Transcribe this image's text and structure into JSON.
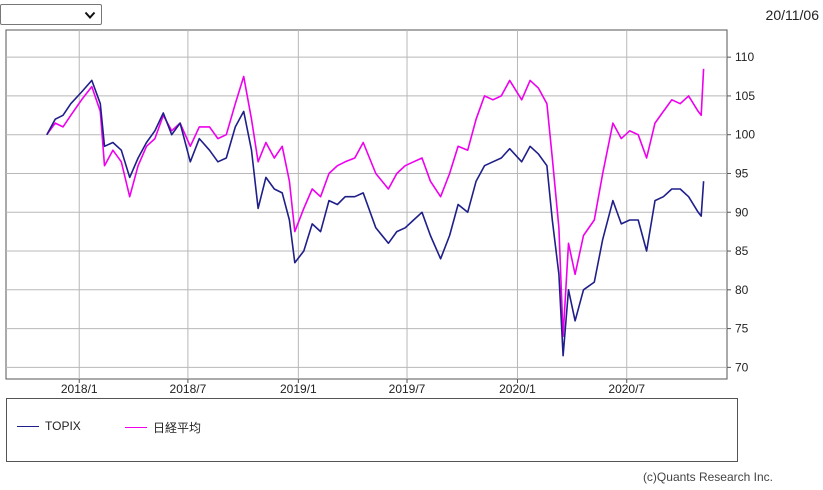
{
  "header": {
    "period_select_value": "",
    "date": "20/11/06"
  },
  "footer": {
    "copyright": "(c)Quants Research Inc."
  },
  "colors": {
    "topix": "#1f1f8a",
    "nikkei": "#ee00ee",
    "grid": "#b8b8b8",
    "frame": "#555555"
  },
  "chart_data": {
    "type": "line",
    "title": "",
    "xlabel": "",
    "ylabel": "",
    "ylim": [
      68.5,
      113.5
    ],
    "xlim": [
      "2017-09-01",
      "2020-12-15"
    ],
    "y_axis_side": "right",
    "y_ticks": [
      110,
      105,
      100,
      95,
      90,
      85,
      80,
      75,
      70
    ],
    "x_ticks": [
      {
        "label": "2018/1",
        "date": "2018-01-01"
      },
      {
        "label": "2018/7",
        "date": "2018-07-01"
      },
      {
        "label": "2019/1",
        "date": "2019-01-01"
      },
      {
        "label": "2019/7",
        "date": "2019-07-01"
      },
      {
        "label": "2020/1",
        "date": "2020-01-01"
      },
      {
        "label": "2020/7",
        "date": "2020-07-01"
      }
    ],
    "grid": true,
    "legend_position": "bottom",
    "series": [
      {
        "name": "TOPIX",
        "points": [
          [
            "2017-11-08",
            100
          ],
          [
            "2017-11-22",
            102
          ],
          [
            "2017-12-05",
            102.5
          ],
          [
            "2017-12-18",
            104
          ],
          [
            "2018-01-05",
            105.5
          ],
          [
            "2018-01-22",
            107
          ],
          [
            "2018-02-05",
            104
          ],
          [
            "2018-02-12",
            98.5
          ],
          [
            "2018-02-26",
            99
          ],
          [
            "2018-03-12",
            98
          ],
          [
            "2018-03-26",
            94.5
          ],
          [
            "2018-04-09",
            97
          ],
          [
            "2018-04-23",
            99
          ],
          [
            "2018-05-07",
            100.5
          ],
          [
            "2018-05-21",
            102.8
          ],
          [
            "2018-06-04",
            100
          ],
          [
            "2018-06-18",
            101.5
          ],
          [
            "2018-07-05",
            96.5
          ],
          [
            "2018-07-20",
            99.5
          ],
          [
            "2018-08-06",
            98
          ],
          [
            "2018-08-20",
            96.5
          ],
          [
            "2018-09-03",
            97
          ],
          [
            "2018-09-18",
            101
          ],
          [
            "2018-10-02",
            103
          ],
          [
            "2018-10-15",
            98
          ],
          [
            "2018-10-26",
            90.5
          ],
          [
            "2018-11-08",
            94.5
          ],
          [
            "2018-11-22",
            93
          ],
          [
            "2018-12-05",
            92.5
          ],
          [
            "2018-12-17",
            89
          ],
          [
            "2018-12-26",
            83.5
          ],
          [
            "2019-01-10",
            85
          ],
          [
            "2019-01-24",
            88.5
          ],
          [
            "2019-02-07",
            87.5
          ],
          [
            "2019-02-21",
            91.5
          ],
          [
            "2019-03-07",
            91
          ],
          [
            "2019-03-20",
            92
          ],
          [
            "2019-04-05",
            92
          ],
          [
            "2019-04-19",
            92.5
          ],
          [
            "2019-05-10",
            88
          ],
          [
            "2019-05-31",
            86
          ],
          [
            "2019-06-14",
            87.5
          ],
          [
            "2019-06-28",
            88
          ],
          [
            "2019-07-12",
            89
          ],
          [
            "2019-07-26",
            90
          ],
          [
            "2019-08-09",
            87
          ],
          [
            "2019-08-26",
            84
          ],
          [
            "2019-09-10",
            87
          ],
          [
            "2019-09-24",
            91
          ],
          [
            "2019-10-10",
            90
          ],
          [
            "2019-10-24",
            94
          ],
          [
            "2019-11-07",
            96
          ],
          [
            "2019-11-21",
            96.5
          ],
          [
            "2019-12-05",
            97
          ],
          [
            "2019-12-19",
            98.2
          ],
          [
            "2020-01-08",
            96.5
          ],
          [
            "2020-01-22",
            98.5
          ],
          [
            "2020-02-05",
            97.5
          ],
          [
            "2020-02-19",
            96
          ],
          [
            "2020-02-28",
            89
          ],
          [
            "2020-03-10",
            82
          ],
          [
            "2020-03-17",
            71.5
          ],
          [
            "2020-03-26",
            80
          ],
          [
            "2020-04-06",
            76
          ],
          [
            "2020-04-20",
            80
          ],
          [
            "2020-05-08",
            81
          ],
          [
            "2020-05-22",
            86.5
          ],
          [
            "2020-06-08",
            91.5
          ],
          [
            "2020-06-22",
            88.5
          ],
          [
            "2020-07-06",
            89
          ],
          [
            "2020-07-20",
            89
          ],
          [
            "2020-08-03",
            85
          ],
          [
            "2020-08-17",
            91.5
          ],
          [
            "2020-08-31",
            92
          ],
          [
            "2020-09-14",
            93
          ],
          [
            "2020-09-28",
            93
          ],
          [
            "2020-10-12",
            92
          ],
          [
            "2020-10-28",
            90
          ],
          [
            "2020-11-02",
            89.5
          ],
          [
            "2020-11-06",
            94
          ]
        ]
      },
      {
        "name": "日経平均",
        "points": [
          [
            "2017-11-08",
            100
          ],
          [
            "2017-11-22",
            101.5
          ],
          [
            "2017-12-05",
            101
          ],
          [
            "2017-12-18",
            102.5
          ],
          [
            "2018-01-05",
            104.5
          ],
          [
            "2018-01-22",
            106.2
          ],
          [
            "2018-02-05",
            103
          ],
          [
            "2018-02-12",
            96
          ],
          [
            "2018-02-26",
            98
          ],
          [
            "2018-03-12",
            96.5
          ],
          [
            "2018-03-26",
            92
          ],
          [
            "2018-04-09",
            96
          ],
          [
            "2018-04-23",
            98.5
          ],
          [
            "2018-05-07",
            99.5
          ],
          [
            "2018-05-21",
            102.5
          ],
          [
            "2018-06-04",
            100.5
          ],
          [
            "2018-06-18",
            101.5
          ],
          [
            "2018-07-05",
            98.5
          ],
          [
            "2018-07-20",
            101
          ],
          [
            "2018-08-06",
            101
          ],
          [
            "2018-08-20",
            99.5
          ],
          [
            "2018-09-03",
            100
          ],
          [
            "2018-09-18",
            104
          ],
          [
            "2018-10-02",
            107.5
          ],
          [
            "2018-10-15",
            102
          ],
          [
            "2018-10-26",
            96.5
          ],
          [
            "2018-11-08",
            99
          ],
          [
            "2018-11-22",
            97
          ],
          [
            "2018-12-05",
            98.5
          ],
          [
            "2018-12-17",
            94
          ],
          [
            "2018-12-26",
            87.5
          ],
          [
            "2019-01-10",
            90.5
          ],
          [
            "2019-01-24",
            93
          ],
          [
            "2019-02-07",
            92
          ],
          [
            "2019-02-21",
            95
          ],
          [
            "2019-03-07",
            96
          ],
          [
            "2019-03-20",
            96.5
          ],
          [
            "2019-04-05",
            97
          ],
          [
            "2019-04-19",
            99
          ],
          [
            "2019-05-10",
            95
          ],
          [
            "2019-05-31",
            93
          ],
          [
            "2019-06-14",
            95
          ],
          [
            "2019-06-28",
            96
          ],
          [
            "2019-07-12",
            96.5
          ],
          [
            "2019-07-26",
            97
          ],
          [
            "2019-08-09",
            94
          ],
          [
            "2019-08-26",
            92
          ],
          [
            "2019-09-10",
            95
          ],
          [
            "2019-09-24",
            98.5
          ],
          [
            "2019-10-10",
            98
          ],
          [
            "2019-10-24",
            102
          ],
          [
            "2019-11-07",
            105
          ],
          [
            "2019-11-21",
            104.5
          ],
          [
            "2019-12-05",
            105
          ],
          [
            "2019-12-19",
            107
          ],
          [
            "2020-01-08",
            104.5
          ],
          [
            "2020-01-22",
            107
          ],
          [
            "2020-02-05",
            106
          ],
          [
            "2020-02-19",
            104
          ],
          [
            "2020-02-28",
            97
          ],
          [
            "2020-03-10",
            88
          ],
          [
            "2020-03-17",
            74
          ],
          [
            "2020-03-26",
            86
          ],
          [
            "2020-04-06",
            82
          ],
          [
            "2020-04-20",
            87
          ],
          [
            "2020-05-08",
            89
          ],
          [
            "2020-05-22",
            95
          ],
          [
            "2020-06-08",
            101.5
          ],
          [
            "2020-06-22",
            99.5
          ],
          [
            "2020-07-06",
            100.5
          ],
          [
            "2020-07-20",
            100
          ],
          [
            "2020-08-03",
            97
          ],
          [
            "2020-08-17",
            101.5
          ],
          [
            "2020-08-31",
            103
          ],
          [
            "2020-09-14",
            104.5
          ],
          [
            "2020-09-28",
            104
          ],
          [
            "2020-10-12",
            105
          ],
          [
            "2020-10-28",
            103
          ],
          [
            "2020-11-02",
            102.5
          ],
          [
            "2020-11-06",
            108.5
          ]
        ]
      }
    ]
  }
}
